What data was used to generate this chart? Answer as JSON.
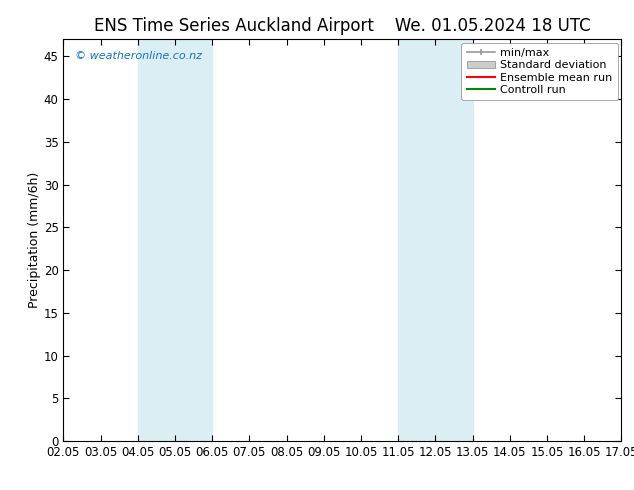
{
  "title_left": "ENS Time Series Auckland Airport",
  "title_right": "We. 01.05.2024 18 UTC",
  "ylabel": "Precipitation (mm/6h)",
  "ylim": [
    0,
    47
  ],
  "yticks": [
    0,
    5,
    10,
    15,
    20,
    25,
    30,
    35,
    40,
    45
  ],
  "x_start": 2.05,
  "x_end": 17.05,
  "xtick_labels": [
    "02.05",
    "03.05",
    "04.05",
    "05.05",
    "06.05",
    "07.05",
    "08.05",
    "09.05",
    "10.05",
    "11.05",
    "12.05",
    "13.05",
    "14.05",
    "15.05",
    "16.05",
    "17.05"
  ],
  "xtick_positions": [
    2.05,
    3.05,
    4.05,
    5.05,
    6.05,
    7.05,
    8.05,
    9.05,
    10.05,
    11.05,
    12.05,
    13.05,
    14.05,
    15.05,
    16.05,
    17.05
  ],
  "shaded_bands": [
    {
      "x_start": 4.05,
      "x_end": 6.05,
      "color": "#daeef3"
    },
    {
      "x_start": 11.05,
      "x_end": 13.05,
      "color": "#daeef3"
    }
  ],
  "watermark": "© weatheronline.co.nz",
  "watermark_color": "#1a6fbb",
  "background_color": "#ffffff",
  "plot_bg_color": "#ffffff",
  "legend_labels": [
    "min/max",
    "Standard deviation",
    "Ensemble mean run",
    "Controll run"
  ],
  "legend_colors": [
    "#aaaaaa",
    "#cccccc",
    "#ff0000",
    "#008800"
  ],
  "title_fontsize": 12,
  "tick_fontsize": 8.5,
  "ylabel_fontsize": 9,
  "legend_fontsize": 8
}
